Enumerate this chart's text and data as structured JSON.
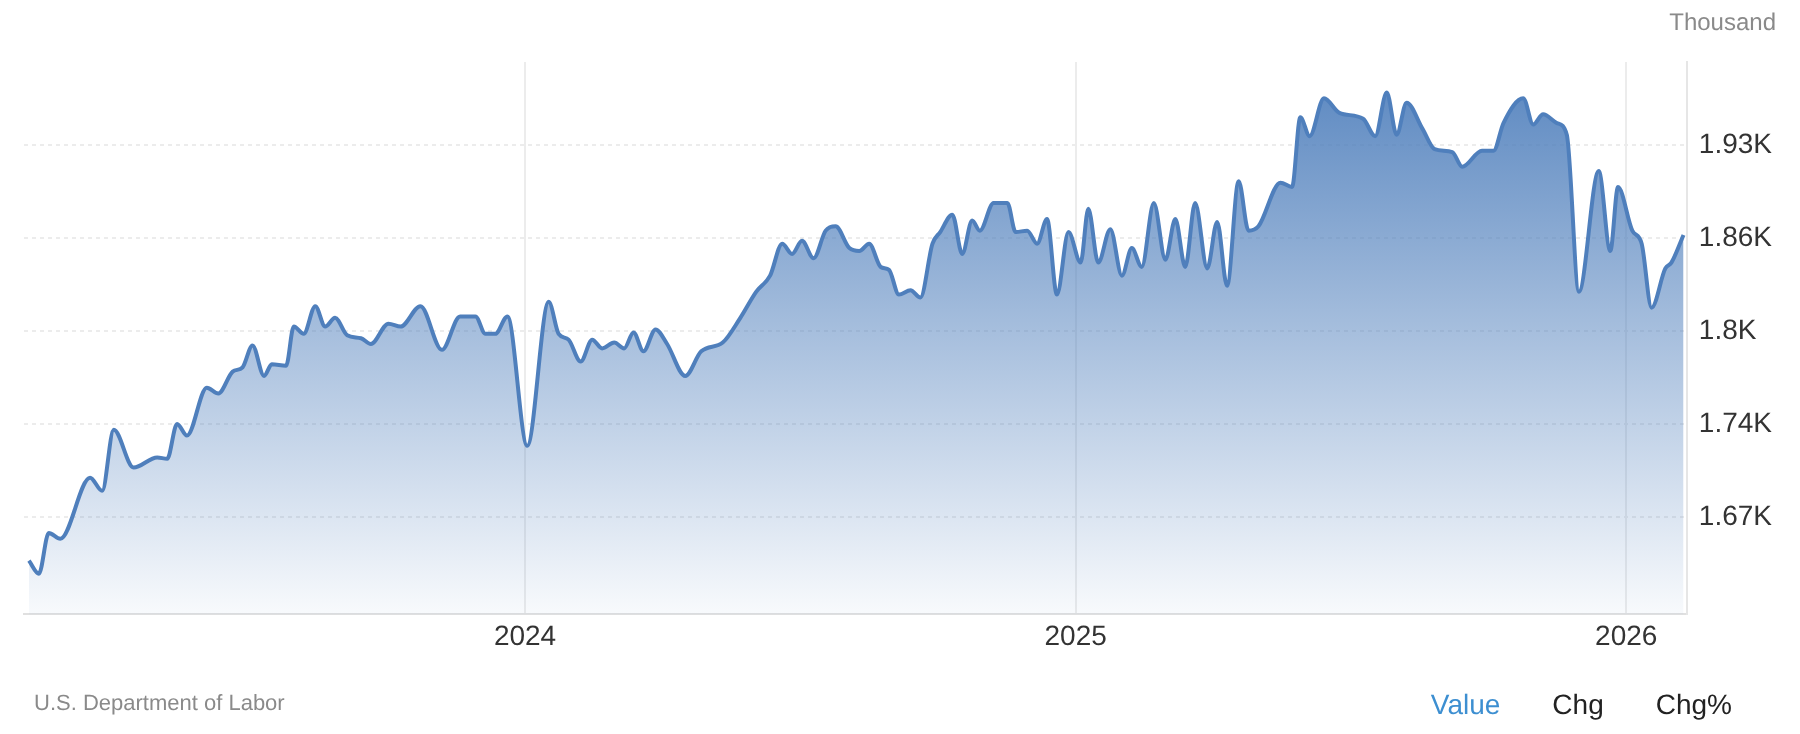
{
  "chart_data": {
    "type": "area",
    "ylabel": "Thousand",
    "annotations": [
      "U.S. Department of Labor",
      "Value",
      "Chg",
      "Chg%"
    ],
    "xlim": [
      2023.09,
      2026.11
    ],
    "xticks": [
      2024,
      2025,
      2026
    ],
    "ylim": [
      1.605,
      1.985
    ],
    "yticks": [
      {
        "value": 1.672,
        "label": "1.67K"
      },
      {
        "value": 1.736,
        "label": "1.74K"
      },
      {
        "value": 1.8,
        "label": "1.8K"
      },
      {
        "value": 1.864,
        "label": "1.86K"
      },
      {
        "value": 1.928,
        "label": "1.93K"
      }
    ],
    "grid": true,
    "legend": false,
    "marker": "none",
    "line_style": "solid",
    "series": [
      {
        "color": "#4f7fbc",
        "x": [
          2023.099,
          2023.117,
          2023.135,
          2023.156,
          2023.21,
          2023.232,
          2023.253,
          2023.289,
          2023.332,
          2023.35,
          2023.368,
          2023.386,
          2023.422,
          2023.443,
          2023.469,
          2023.487,
          2023.505,
          2023.526,
          2023.54,
          2023.566,
          2023.58,
          2023.598,
          2023.619,
          2023.637,
          2023.655,
          2023.677,
          2023.702,
          2023.72,
          2023.752,
          2023.774,
          2023.81,
          2023.849,
          2023.882,
          2023.91,
          2023.928,
          2023.946,
          2023.968,
          2024.004,
          2024.043,
          2024.061,
          2024.079,
          2024.101,
          2024.122,
          2024.14,
          2024.162,
          2024.18,
          2024.197,
          2024.215,
          2024.237,
          2024.258,
          2024.291,
          2024.32,
          2024.359,
          2024.391,
          2024.42,
          2024.445,
          2024.467,
          2024.485,
          2024.503,
          2024.524,
          2024.546,
          2024.564,
          2024.589,
          2024.607,
          2024.625,
          2024.646,
          2024.661,
          2024.679,
          2024.7,
          2024.718,
          2024.74,
          2024.754,
          2024.776,
          2024.794,
          2024.812,
          2024.826,
          2024.851,
          2024.876,
          2024.891,
          2024.912,
          2024.93,
          2024.948,
          2024.966,
          2024.987,
          2025.009,
          2025.023,
          2025.041,
          2025.063,
          2025.084,
          2025.102,
          2025.12,
          2025.142,
          2025.163,
          2025.181,
          2025.199,
          2025.217,
          2025.239,
          2025.257,
          2025.275,
          2025.296,
          2025.314,
          2025.332,
          2025.372,
          2025.393,
          2025.408,
          2025.425,
          2025.451,
          2025.479,
          2025.522,
          2025.544,
          2025.565,
          2025.583,
          2025.601,
          2025.63,
          2025.652,
          2025.684,
          2025.702,
          2025.738,
          2025.759,
          2025.777,
          2025.813,
          2025.831,
          2025.849,
          2025.874,
          2025.892,
          2025.914,
          2025.95,
          2025.971,
          2025.985,
          2026.011,
          2026.028,
          2026.046,
          2026.071,
          2026.082,
          2026.104
        ],
        "values": [
          1.642,
          1.633,
          1.661,
          1.657,
          1.699,
          1.69,
          1.732,
          1.706,
          1.713,
          1.712,
          1.736,
          1.728,
          1.761,
          1.757,
          1.772,
          1.775,
          1.79,
          1.769,
          1.777,
          1.776,
          1.803,
          1.798,
          1.817,
          1.803,
          1.809,
          1.797,
          1.795,
          1.791,
          1.805,
          1.803,
          1.817,
          1.787,
          1.81,
          1.81,
          1.798,
          1.798,
          1.81,
          1.721,
          1.82,
          1.798,
          1.794,
          1.779,
          1.794,
          1.788,
          1.792,
          1.788,
          1.799,
          1.786,
          1.801,
          1.791,
          1.769,
          1.786,
          1.792,
          1.809,
          1.827,
          1.838,
          1.86,
          1.853,
          1.862,
          1.85,
          1.869,
          1.872,
          1.857,
          1.855,
          1.86,
          1.844,
          1.842,
          1.825,
          1.828,
          1.823,
          1.86,
          1.868,
          1.88,
          1.853,
          1.876,
          1.869,
          1.888,
          1.888,
          1.868,
          1.869,
          1.86,
          1.877,
          1.825,
          1.868,
          1.847,
          1.884,
          1.847,
          1.87,
          1.838,
          1.857,
          1.844,
          1.888,
          1.849,
          1.877,
          1.844,
          1.888,
          1.843,
          1.875,
          1.831,
          1.903,
          1.869,
          1.872,
          1.902,
          1.899,
          1.947,
          1.934,
          1.96,
          1.95,
          1.946,
          1.934,
          1.964,
          1.935,
          1.957,
          1.939,
          1.925,
          1.923,
          1.913,
          1.924,
          1.924,
          1.943,
          1.96,
          1.942,
          1.949,
          1.943,
          1.935,
          1.827,
          1.91,
          1.855,
          1.899,
          1.869,
          1.86,
          1.816,
          1.843,
          1.847,
          1.866
        ]
      }
    ]
  }
}
